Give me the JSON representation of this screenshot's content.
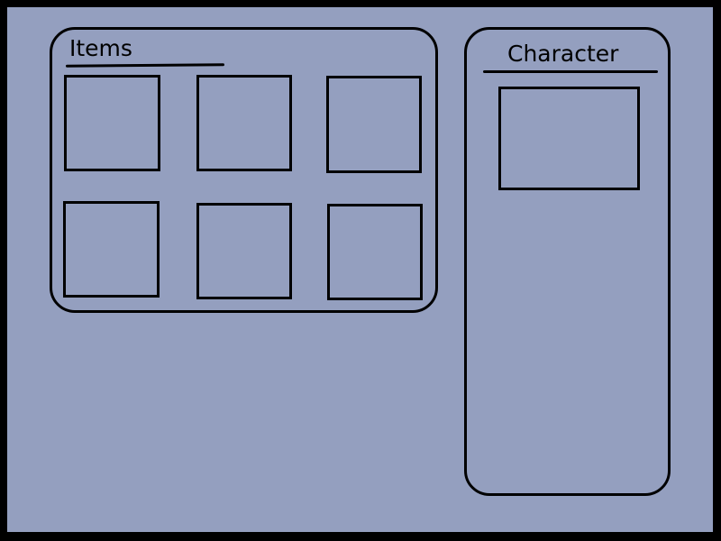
{
  "colors": {
    "background": "#949fbf",
    "frame": "#000000",
    "outline": "#000000"
  },
  "items_panel": {
    "title": "Items",
    "slots": [
      {
        "label": ""
      },
      {
        "label": ""
      },
      {
        "label": ""
      },
      {
        "label": ""
      },
      {
        "label": ""
      },
      {
        "label": ""
      }
    ]
  },
  "character_panel": {
    "title": "Character",
    "portrait": {
      "label": ""
    }
  }
}
